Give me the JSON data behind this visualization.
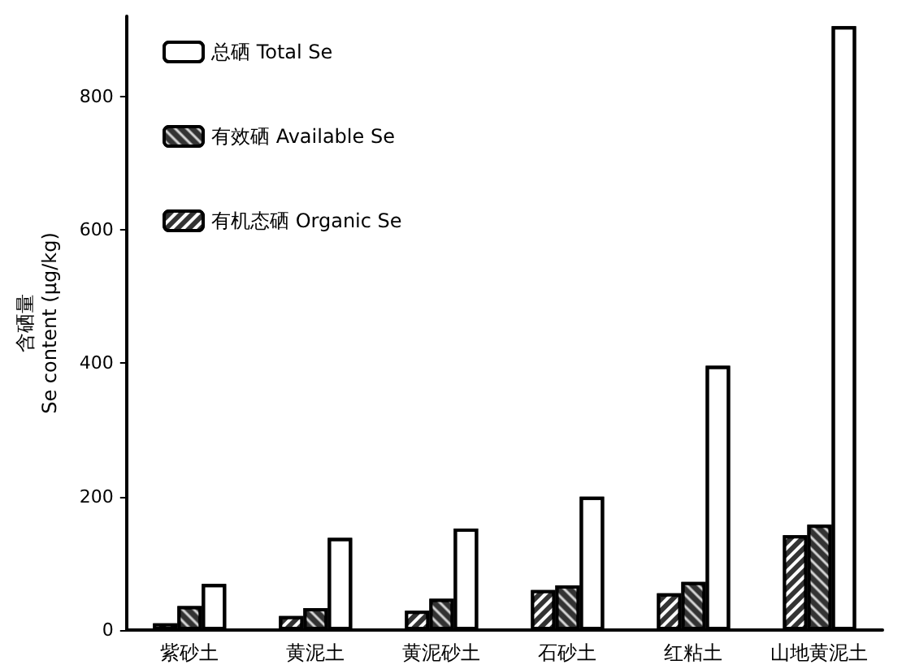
{
  "chart_data": {
    "type": "bar",
    "ylabel": "含硒量\nSe content (μg/kg)",
    "categories": [
      "紫砂土",
      "黄泥土",
      "黄泥砂土",
      "石砂土",
      "红粘土",
      "山地黄泥土"
    ],
    "series": [
      {
        "name": "有机态硒 Organic Se",
        "color": "#333333",
        "values": [
          10,
          21,
          29,
          60,
          55,
          142
        ]
      },
      {
        "name": "有效硒 Available Se",
        "color": "#333333",
        "values": [
          36,
          33,
          47,
          67,
          72,
          158
        ]
      },
      {
        "name": "总硒 Total Se",
        "color": "#ffffff",
        "values": [
          69,
          138,
          152,
          200,
          396,
          905
        ]
      }
    ],
    "ylim": [
      0,
      920
    ],
    "yticks": [
      0,
      200,
      400,
      600,
      800
    ],
    "grid": false,
    "legend": "top left"
  }
}
